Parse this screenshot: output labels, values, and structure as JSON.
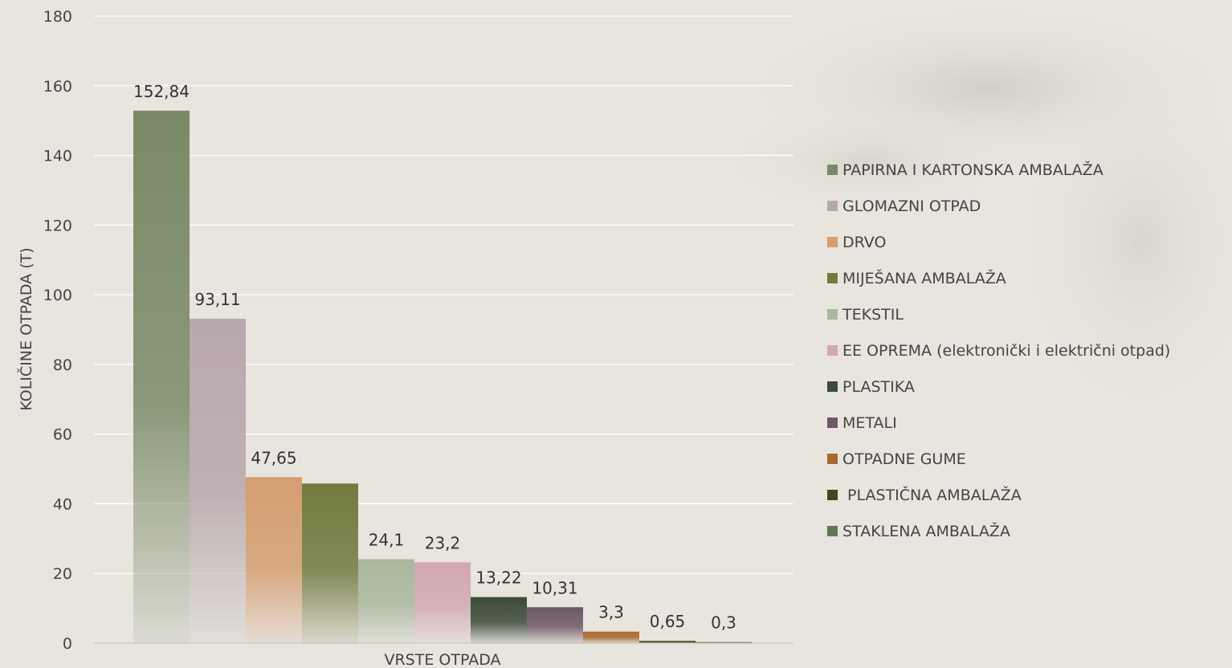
{
  "chart_data": {
    "type": "bar",
    "title": "",
    "xlabel": "VRSTE OTPADA",
    "ylabel": "KOLIČINE OTPADA  (T)",
    "ylim": [
      0,
      180
    ],
    "yticks": [
      0,
      20,
      40,
      60,
      80,
      100,
      120,
      140,
      160,
      180
    ],
    "grid": true,
    "legend_position": "right",
    "series": [
      {
        "name": "PAPIRNA I KARTONSKA AMBALAŽA",
        "value": 152.84,
        "label": "152,84",
        "color": "#7a8a68"
      },
      {
        "name": "GLOMAZNI OTPAD",
        "value": 93.11,
        "label": "93,11",
        "color": "#b8a8ac"
      },
      {
        "name": "DRVO",
        "value": 47.65,
        "label": "47,65",
        "color": "#d49e70"
      },
      {
        "name": "MIJEŠANA AMBALAŽA",
        "value": 45.8,
        "label": "",
        "color": "#727a40"
      },
      {
        "name": "TEKSTIL",
        "value": 24.1,
        "label": "24,1",
        "color": "#aab89e"
      },
      {
        "name": "EE OPREMA (elektronički i električni otpad)",
        "value": 23.2,
        "label": "23,2",
        "color": "#d2a8b2"
      },
      {
        "name": "PLASTIKA",
        "value": 13.22,
        "label": "13,22",
        "color": "#3c4a38"
      },
      {
        "name": "METALI",
        "value": 10.31,
        "label": "10,31",
        "color": "#6e5866"
      },
      {
        "name": "OTPADNE GUME",
        "value": 3.3,
        "label": "3,3",
        "color": "#a86830"
      },
      {
        "name": " PLASTIČNA AMBALAŽA",
        "value": 0.65,
        "label": "0,65",
        "color": "#3c4a20"
      },
      {
        "name": "STAKLENA AMBALAŽA",
        "value": 0.3,
        "label": "0,3",
        "color": "#5c7a54"
      }
    ]
  }
}
